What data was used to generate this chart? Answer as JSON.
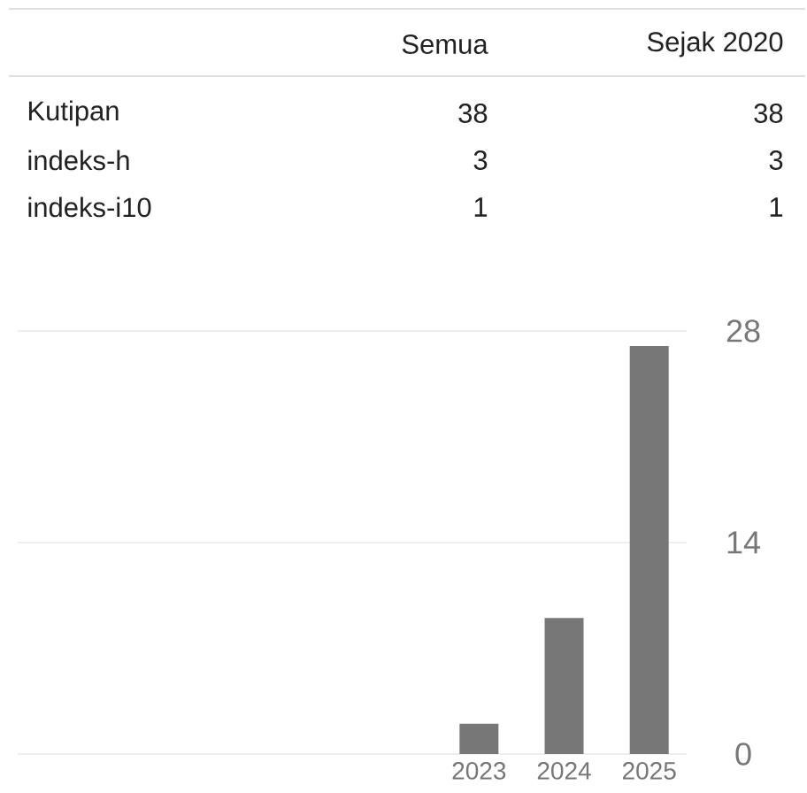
{
  "chart_data": [
    {
      "type": "other",
      "categories": [
        "Semua",
        "Sejak 2020"
      ],
      "y_categories": [
        "Kutipan",
        "indeks-h",
        "indeks-i10"
      ],
      "cell_labels": [
        [
          "38",
          "38"
        ],
        [
          "3",
          "3"
        ],
        [
          "1",
          "1"
        ]
      ]
    },
    {
      "type": "bar",
      "categories": [
        "2023",
        "2024",
        "2025"
      ],
      "values": [
        2,
        9,
        27
      ],
      "color": "#777777",
      "ylim": [
        0,
        28
      ],
      "yticks": [
        0,
        14,
        28
      ],
      "grid": "y"
    }
  ]
}
